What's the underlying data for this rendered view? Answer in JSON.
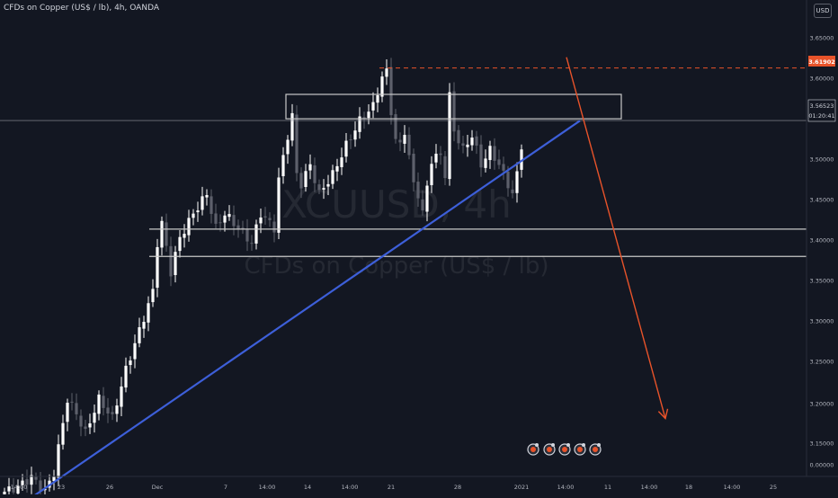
{
  "header": {
    "title_parts": [
      "CFDs on Copper (US$ / lb)",
      "4h",
      "OANDA"
    ],
    "currency_button": "USD"
  },
  "watermark": {
    "symbol": "XCUUSD, 4h",
    "description": "CFDs on Copper (US$ / lb)"
  },
  "colors": {
    "background": "#131722",
    "candle_up": "#ffffff",
    "candle_down": "#5d606b",
    "trendline": "#3d5fd9",
    "arrow": "#e8532a",
    "level_line": "#e8532a",
    "box": "#c8c8c8"
  },
  "price_scale": {
    "ticks": [
      "3.65000",
      "3.60000",
      "3.55000",
      "3.50000",
      "3.45000",
      "3.40000",
      "3.35000",
      "3.30000",
      "3.25000",
      "3.20000",
      "3.15000",
      "0.00000"
    ],
    "high_label": "3.61902",
    "last_price": "3.56523",
    "countdown": "01:20:41"
  },
  "time_scale": {
    "ticks": [
      "14:00",
      "23",
      "26",
      "Dec",
      "7",
      "14:00",
      "14",
      "14:00",
      "21",
      "28",
      "2021",
      "14:00",
      "11",
      "14:00",
      "18",
      "14:00",
      "25"
    ]
  },
  "event_icons": [
    "event-flag-1",
    "event-flag-2",
    "event-flag-3",
    "event-flag-4",
    "event-flag-5"
  ],
  "chart_data": {
    "type": "candlestick",
    "symbol": "XCUUSD",
    "interval": "4h",
    "ylim": [
      3.15,
      3.67
    ],
    "anchors": [
      [
        0,
        3.185
      ],
      [
        3,
        3.19
      ],
      [
        6,
        3.2
      ],
      [
        9,
        3.185
      ],
      [
        11,
        3.205
      ],
      [
        14,
        3.28
      ],
      [
        16,
        3.265
      ],
      [
        18,
        3.245
      ],
      [
        21,
        3.28
      ],
      [
        24,
        3.26
      ],
      [
        27,
        3.31
      ],
      [
        30,
        3.35
      ],
      [
        33,
        3.39
      ],
      [
        34,
        3.44
      ],
      [
        35,
        3.46
      ],
      [
        37,
        3.41
      ],
      [
        39,
        3.445
      ],
      [
        42,
        3.47
      ],
      [
        45,
        3.49
      ],
      [
        47,
        3.455
      ],
      [
        49,
        3.47
      ],
      [
        52,
        3.455
      ],
      [
        55,
        3.44
      ],
      [
        57,
        3.47
      ],
      [
        60,
        3.455
      ],
      [
        61,
        3.505
      ],
      [
        63,
        3.55
      ],
      [
        64,
        3.57
      ],
      [
        65,
        3.51
      ],
      [
        66,
        3.5
      ],
      [
        68,
        3.52
      ],
      [
        70,
        3.49
      ],
      [
        73,
        3.51
      ],
      [
        76,
        3.54
      ],
      [
        79,
        3.565
      ],
      [
        82,
        3.58
      ],
      [
        84,
        3.61
      ],
      [
        85,
        3.615
      ],
      [
        86,
        3.575
      ],
      [
        87,
        3.545
      ],
      [
        88,
        3.54
      ],
      [
        89,
        3.555
      ],
      [
        91,
        3.5
      ],
      [
        92,
        3.49
      ],
      [
        93,
        3.47
      ],
      [
        95,
        3.525
      ],
      [
        97,
        3.53
      ],
      [
        98,
        3.51
      ],
      [
        99,
        3.59
      ],
      [
        100,
        3.555
      ],
      [
        102,
        3.535
      ],
      [
        104,
        3.55
      ],
      [
        106,
        3.52
      ],
      [
        108,
        3.535
      ],
      [
        110,
        3.52
      ],
      [
        112,
        3.5
      ],
      [
        113,
        3.49
      ],
      [
        114,
        3.51
      ],
      [
        115,
        3.54
      ],
      [
        116,
        3.565
      ]
    ],
    "levels": {
      "high": 3.61902,
      "last": 3.56523,
      "resistance_zone": [
        3.567,
        3.592
      ],
      "support_lines": [
        3.454,
        3.426
      ]
    },
    "trendline": [
      [
        0,
        3.16
      ],
      [
        128,
        3.565
      ]
    ],
    "projection_arrow": [
      [
        125,
        3.63
      ],
      [
        147,
        3.26
      ]
    ]
  }
}
